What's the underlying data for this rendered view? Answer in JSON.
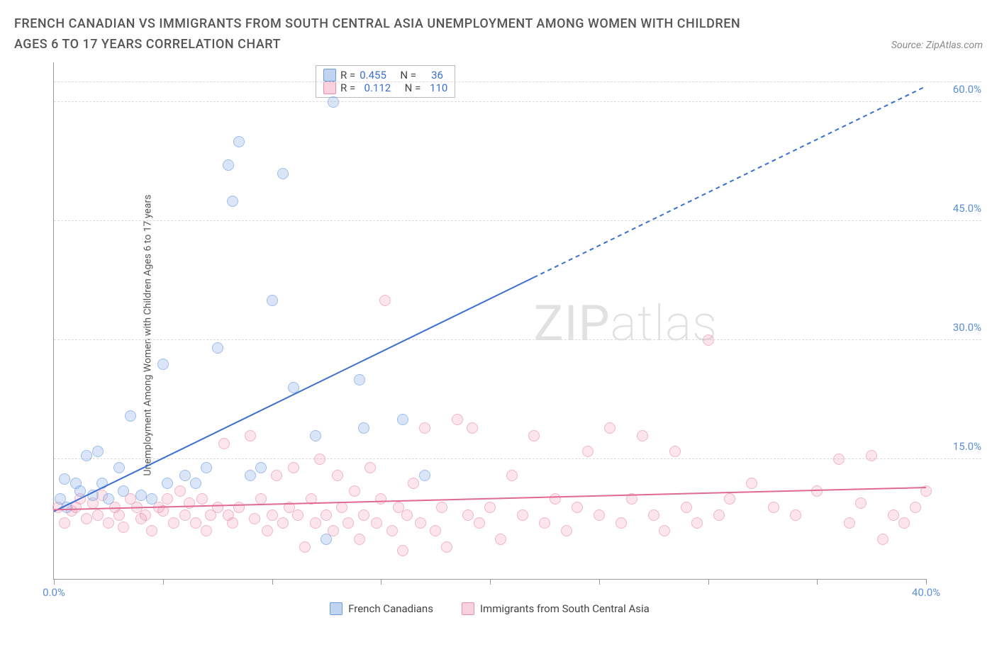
{
  "title": "FRENCH CANADIAN VS IMMIGRANTS FROM SOUTH CENTRAL ASIA UNEMPLOYMENT AMONG WOMEN WITH CHILDREN AGES 6 TO 17 YEARS CORRELATION CHART",
  "source": "Source: ZipAtlas.com",
  "y_axis_label": "Unemployment Among Women with Children Ages 6 to 17 years",
  "watermark": "ZIPatlas",
  "chart": {
    "type": "scatter",
    "xlim": [
      0,
      40
    ],
    "ylim": [
      0,
      65
    ],
    "x_ticks": [
      0,
      5,
      10,
      15,
      20,
      25,
      30,
      35,
      40
    ],
    "x_tick_labels": {
      "0": "0.0%",
      "40": "40.0%"
    },
    "y_ticks": [
      15,
      30,
      45,
      60
    ],
    "y_tick_labels": [
      "15.0%",
      "30.0%",
      "45.0%",
      "60.0%"
    ],
    "grid_color": "#dddddd",
    "axis_color": "#999999",
    "background_color": "#ffffff",
    "marker_size": 16,
    "series": [
      {
        "name": "French Canadians",
        "color_fill": "rgba(130,170,230,0.45)",
        "color_stroke": "#6a9ae0",
        "R": "0.455",
        "N": "36",
        "trend": {
          "x1": 0,
          "y1": 8.5,
          "x2": 40,
          "y2": 62,
          "solid_until_x": 22,
          "color": "#3b6fd0",
          "width": 2
        },
        "points": [
          [
            0.3,
            10
          ],
          [
            0.5,
            12.5
          ],
          [
            0.6,
            9
          ],
          [
            1,
            12
          ],
          [
            1.2,
            11
          ],
          [
            1.5,
            15.5
          ],
          [
            1.8,
            10.5
          ],
          [
            2,
            16
          ],
          [
            2.2,
            12
          ],
          [
            2.5,
            10
          ],
          [
            3,
            14
          ],
          [
            3.2,
            11
          ],
          [
            3.5,
            20.5
          ],
          [
            4,
            10.5
          ],
          [
            4.5,
            10
          ],
          [
            5,
            27
          ],
          [
            5.2,
            12
          ],
          [
            6,
            13
          ],
          [
            6.5,
            12
          ],
          [
            7,
            14
          ],
          [
            7.5,
            29
          ],
          [
            8,
            52
          ],
          [
            8.2,
            47.5
          ],
          [
            8.5,
            55
          ],
          [
            9,
            13
          ],
          [
            9.5,
            14
          ],
          [
            10,
            35
          ],
          [
            10.5,
            51
          ],
          [
            11,
            24
          ],
          [
            12,
            18
          ],
          [
            12.5,
            5
          ],
          [
            12.8,
            60
          ],
          [
            14,
            25
          ],
          [
            14.2,
            19
          ],
          [
            16,
            20
          ],
          [
            17,
            13
          ]
        ]
      },
      {
        "name": "Immigrants from South Central Asia",
        "color_fill": "rgba(240,140,170,0.35)",
        "color_stroke": "#e88fb0",
        "R": "0.112",
        "N": "110",
        "trend": {
          "x1": 0,
          "y1": 8.7,
          "x2": 40,
          "y2": 11.5,
          "solid_until_x": 40,
          "color": "#e06a95",
          "width": 2
        },
        "points": [
          [
            0.2,
            9
          ],
          [
            0.5,
            7
          ],
          [
            0.8,
            8.5
          ],
          [
            1,
            9
          ],
          [
            1.2,
            10
          ],
          [
            1.5,
            7.5
          ],
          [
            1.8,
            9.5
          ],
          [
            2,
            8
          ],
          [
            2.2,
            10.5
          ],
          [
            2.5,
            7
          ],
          [
            2.8,
            9
          ],
          [
            3,
            8
          ],
          [
            3.2,
            6.5
          ],
          [
            3.5,
            10
          ],
          [
            3.8,
            9
          ],
          [
            4,
            7.5
          ],
          [
            4.2,
            8
          ],
          [
            4.5,
            6
          ],
          [
            4.8,
            9
          ],
          [
            5,
            8.5
          ],
          [
            5.2,
            10
          ],
          [
            5.5,
            7
          ],
          [
            5.8,
            11
          ],
          [
            6,
            8
          ],
          [
            6.2,
            9.5
          ],
          [
            6.5,
            7
          ],
          [
            6.8,
            10
          ],
          [
            7,
            6
          ],
          [
            7.2,
            8
          ],
          [
            7.5,
            9
          ],
          [
            7.8,
            17
          ],
          [
            8,
            8
          ],
          [
            8.2,
            7
          ],
          [
            8.5,
            9
          ],
          [
            9,
            18
          ],
          [
            9.2,
            7.5
          ],
          [
            9.5,
            10
          ],
          [
            9.8,
            6
          ],
          [
            10,
            8
          ],
          [
            10.2,
            13
          ],
          [
            10.5,
            7
          ],
          [
            10.8,
            9
          ],
          [
            11,
            14
          ],
          [
            11.2,
            8
          ],
          [
            11.5,
            4
          ],
          [
            11.8,
            10
          ],
          [
            12,
            7
          ],
          [
            12.2,
            15
          ],
          [
            12.5,
            8
          ],
          [
            12.8,
            6
          ],
          [
            13,
            13
          ],
          [
            13.2,
            9
          ],
          [
            13.5,
            7
          ],
          [
            13.8,
            11
          ],
          [
            14,
            5
          ],
          [
            14.2,
            8
          ],
          [
            14.5,
            14
          ],
          [
            14.8,
            7
          ],
          [
            15,
            10
          ],
          [
            15.2,
            35
          ],
          [
            15.5,
            6
          ],
          [
            15.8,
            9
          ],
          [
            16,
            3.5
          ],
          [
            16.2,
            8
          ],
          [
            16.5,
            12
          ],
          [
            16.8,
            7
          ],
          [
            17,
            19
          ],
          [
            17.5,
            6
          ],
          [
            17.8,
            9
          ],
          [
            18,
            4
          ],
          [
            18.5,
            20
          ],
          [
            19,
            8
          ],
          [
            19.2,
            19
          ],
          [
            19.5,
            7
          ],
          [
            20,
            9
          ],
          [
            20.5,
            5
          ],
          [
            21,
            13
          ],
          [
            21.5,
            8
          ],
          [
            22,
            18
          ],
          [
            22.5,
            7
          ],
          [
            23,
            10
          ],
          [
            23.5,
            6
          ],
          [
            24,
            9
          ],
          [
            24.5,
            16
          ],
          [
            25,
            8
          ],
          [
            25.5,
            19
          ],
          [
            26,
            7
          ],
          [
            26.5,
            10
          ],
          [
            27,
            18
          ],
          [
            27.5,
            8
          ],
          [
            28,
            6
          ],
          [
            28.5,
            16
          ],
          [
            29,
            9
          ],
          [
            29.5,
            7
          ],
          [
            30,
            30
          ],
          [
            30.5,
            8
          ],
          [
            31,
            10
          ],
          [
            32,
            12
          ],
          [
            33,
            9
          ],
          [
            34,
            8
          ],
          [
            35,
            11
          ],
          [
            36,
            15
          ],
          [
            36.5,
            7
          ],
          [
            37,
            9.5
          ],
          [
            37.5,
            15.5
          ],
          [
            38,
            5
          ],
          [
            38.5,
            8
          ],
          [
            39,
            7
          ],
          [
            39.5,
            9
          ],
          [
            40,
            11
          ]
        ]
      }
    ]
  },
  "legend": {
    "r_label": "R =",
    "n_label": "N ="
  },
  "colors": {
    "tick_label": "#5b8fd6",
    "title": "#555555"
  }
}
